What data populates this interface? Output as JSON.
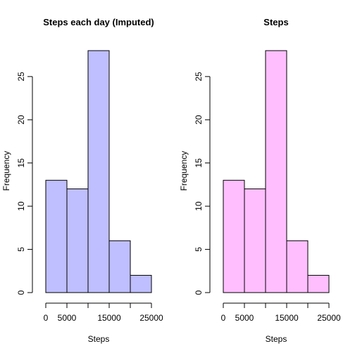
{
  "chart_data": [
    {
      "type": "bar",
      "title": "Steps each day (Imputed)",
      "xlabel": "Steps",
      "ylabel": "Frequency",
      "bar_color": "#bfbfff",
      "bin_edges": [
        0,
        5000,
        10000,
        15000,
        20000,
        25000
      ],
      "values": [
        13,
        12,
        28,
        6,
        2
      ],
      "xlim": [
        0,
        25000
      ],
      "ylim": [
        0,
        28
      ],
      "x_ticks": [
        0,
        5000,
        15000,
        25000
      ],
      "y_ticks": [
        0,
        5,
        10,
        15,
        20,
        25
      ],
      "grid": false
    },
    {
      "type": "bar",
      "title": "Steps",
      "xlabel": "Steps",
      "ylabel": "Frequency",
      "bar_color": "#ffbfff",
      "bin_edges": [
        0,
        5000,
        10000,
        15000,
        20000,
        25000
      ],
      "values": [
        13,
        12,
        28,
        6,
        2
      ],
      "xlim": [
        0,
        25000
      ],
      "ylim": [
        0,
        28
      ],
      "x_ticks": [
        0,
        5000,
        15000,
        25000
      ],
      "y_ticks": [
        0,
        5,
        10,
        15,
        20,
        25
      ],
      "grid": false
    }
  ]
}
